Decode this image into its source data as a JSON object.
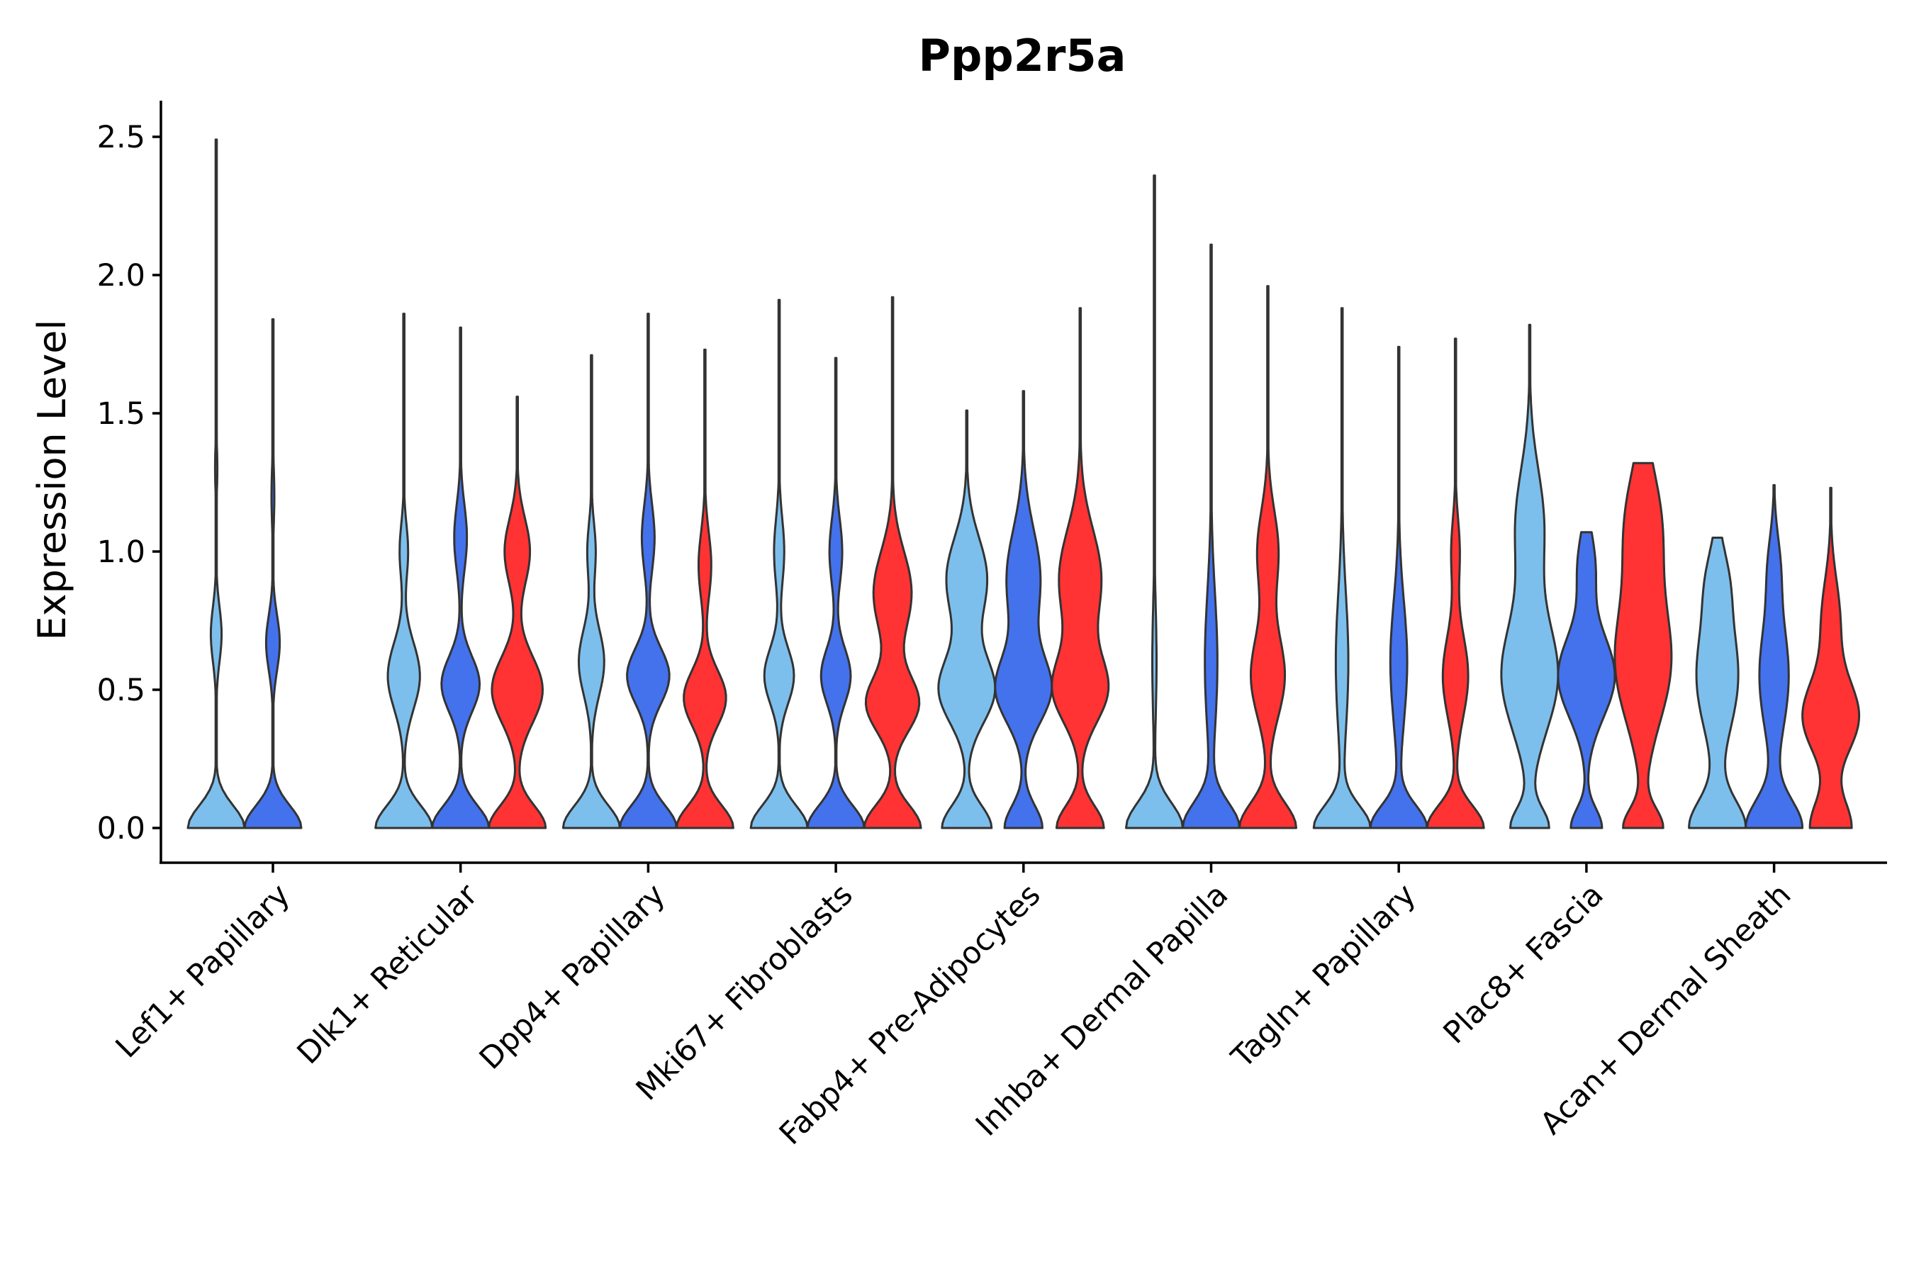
{
  "chart_data": {
    "type": "violin",
    "title": "Ppp2r5a",
    "xlabel": "",
    "ylabel": "Expression Level",
    "ylim": [
      -0.12,
      2.62
    ],
    "yticks": [
      0.0,
      0.5,
      1.0,
      1.5,
      2.0,
      2.5
    ],
    "ytick_labels": [
      "0.0",
      "0.5",
      "1.0",
      "1.5",
      "2.0",
      "2.5"
    ],
    "categories": [
      "Lef1+ Papillary",
      "Dlk1+ Reticular",
      "Dpp4+ Papillary",
      "Mki67+ Fibroblasts",
      "Fabp4+ Pre-Adipocytes",
      "Inhba+ Dermal Papilla",
      "Tagln+ Papillary",
      "Plac8+ Fascia",
      "Acan+ Dermal Sheath"
    ],
    "colors": {
      "group1": "#7DBFEC",
      "group2": "#4472EC",
      "group3": "#FF3333"
    },
    "violins": [
      {
        "category": 0,
        "group": "group1",
        "max": 2.49,
        "modes": [
          [
            0.0,
            1.0,
            0.08
          ],
          [
            0.7,
            0.19,
            0.1
          ],
          [
            1.3,
            0.04,
            0.08
          ]
        ]
      },
      {
        "category": 0,
        "group": "group2",
        "max": 1.84,
        "modes": [
          [
            0.0,
            1.0,
            0.08
          ],
          [
            0.67,
            0.24,
            0.1
          ],
          [
            1.2,
            0.05,
            0.1
          ]
        ]
      },
      {
        "category": 1,
        "group": "group1",
        "max": 1.86,
        "modes": [
          [
            0.0,
            0.67,
            0.08
          ],
          [
            0.55,
            0.38,
            0.12
          ],
          [
            1.0,
            0.1,
            0.1
          ]
        ]
      },
      {
        "category": 1,
        "group": "group2",
        "max": 1.81,
        "modes": [
          [
            0.0,
            0.67,
            0.08
          ],
          [
            0.52,
            0.45,
            0.1
          ],
          [
            1.05,
            0.15,
            0.12
          ]
        ]
      },
      {
        "category": 1,
        "group": "group3",
        "max": 1.56,
        "modes": [
          [
            0.0,
            0.67,
            0.08
          ],
          [
            0.5,
            0.6,
            0.12
          ],
          [
            1.0,
            0.3,
            0.12
          ]
        ]
      },
      {
        "category": 2,
        "group": "group1",
        "max": 1.71,
        "modes": [
          [
            0.0,
            0.67,
            0.08
          ],
          [
            0.6,
            0.3,
            0.12
          ],
          [
            1.0,
            0.1,
            0.1
          ]
        ]
      },
      {
        "category": 2,
        "group": "group2",
        "max": 1.86,
        "modes": [
          [
            0.0,
            0.67,
            0.08
          ],
          [
            0.55,
            0.5,
            0.1
          ],
          [
            1.05,
            0.15,
            0.12
          ]
        ]
      },
      {
        "category": 2,
        "group": "group3",
        "max": 1.73,
        "modes": [
          [
            0.0,
            0.67,
            0.08
          ],
          [
            0.47,
            0.5,
            0.1
          ],
          [
            0.95,
            0.15,
            0.12
          ]
        ]
      },
      {
        "category": 3,
        "group": "group1",
        "max": 1.91,
        "modes": [
          [
            0.0,
            0.67,
            0.08
          ],
          [
            0.55,
            0.35,
            0.1
          ],
          [
            1.0,
            0.12,
            0.12
          ]
        ]
      },
      {
        "category": 3,
        "group": "group2",
        "max": 1.7,
        "modes": [
          [
            0.0,
            0.67,
            0.08
          ],
          [
            0.55,
            0.35,
            0.1
          ],
          [
            1.0,
            0.15,
            0.12
          ]
        ]
      },
      {
        "category": 3,
        "group": "group3",
        "max": 1.92,
        "modes": [
          [
            0.0,
            0.67,
            0.08
          ],
          [
            0.45,
            0.62,
            0.1
          ],
          [
            0.85,
            0.45,
            0.15
          ]
        ]
      },
      {
        "category": 4,
        "group": "group1",
        "max": 1.51,
        "modes": [
          [
            0.0,
            0.67,
            0.08
          ],
          [
            0.5,
            0.75,
            0.12
          ],
          [
            0.9,
            0.55,
            0.15
          ]
        ]
      },
      {
        "category": 4,
        "group": "group2",
        "max": 1.58,
        "modes": [
          [
            0.0,
            0.67,
            0.08
          ],
          [
            0.5,
            0.95,
            0.12
          ],
          [
            0.9,
            0.6,
            0.18
          ]
        ]
      },
      {
        "category": 4,
        "group": "group3",
        "max": 1.88,
        "modes": [
          [
            0.0,
            0.67,
            0.08
          ],
          [
            0.5,
            0.75,
            0.12
          ],
          [
            0.9,
            0.6,
            0.18
          ]
        ]
      },
      {
        "category": 5,
        "group": "group1",
        "max": 2.36,
        "modes": [
          [
            0.0,
            0.67,
            0.09
          ],
          [
            0.6,
            0.05,
            0.2
          ]
        ]
      },
      {
        "category": 5,
        "group": "group2",
        "max": 2.11,
        "modes": [
          [
            0.0,
            0.67,
            0.09
          ],
          [
            0.6,
            0.15,
            0.25
          ]
        ]
      },
      {
        "category": 5,
        "group": "group3",
        "max": 1.96,
        "modes": [
          [
            0.0,
            0.67,
            0.09
          ],
          [
            0.55,
            0.4,
            0.15
          ],
          [
            1.0,
            0.25,
            0.15
          ]
        ]
      },
      {
        "category": 6,
        "group": "group1",
        "max": 1.88,
        "modes": [
          [
            0.0,
            0.67,
            0.08
          ],
          [
            0.6,
            0.15,
            0.25
          ]
        ]
      },
      {
        "category": 6,
        "group": "group2",
        "max": 1.74,
        "modes": [
          [
            0.0,
            0.67,
            0.08
          ],
          [
            0.6,
            0.2,
            0.22
          ]
        ]
      },
      {
        "category": 6,
        "group": "group3",
        "max": 1.77,
        "modes": [
          [
            0.0,
            0.67,
            0.08
          ],
          [
            0.55,
            0.3,
            0.15
          ],
          [
            1.0,
            0.1,
            0.12
          ]
        ]
      },
      {
        "category": 7,
        "group": "group1",
        "max": 1.82,
        "modes": [
          [
            0.0,
            0.67,
            0.07
          ],
          [
            0.55,
            1.0,
            0.2
          ],
          [
            1.1,
            0.5,
            0.2
          ]
        ]
      },
      {
        "category": 7,
        "group": "group2",
        "max": 1.07,
        "modes": [
          [
            0.0,
            0.55,
            0.07
          ],
          [
            0.55,
            1.0,
            0.15
          ],
          [
            0.95,
            0.3,
            0.12
          ]
        ]
      },
      {
        "category": 7,
        "group": "group3",
        "max": 1.32,
        "modes": [
          [
            0.0,
            0.67,
            0.07
          ],
          [
            0.6,
            0.95,
            0.22
          ],
          [
            1.1,
            0.6,
            0.2
          ]
        ]
      },
      {
        "category": 8,
        "group": "group1",
        "max": 1.05,
        "modes": [
          [
            0.0,
            0.67,
            0.1
          ],
          [
            0.55,
            0.5,
            0.2
          ],
          [
            0.9,
            0.2,
            0.12
          ]
        ]
      },
      {
        "category": 8,
        "group": "group2",
        "max": 1.24,
        "modes": [
          [
            0.0,
            0.67,
            0.1
          ],
          [
            0.55,
            0.35,
            0.2
          ],
          [
            0.95,
            0.12,
            0.12
          ]
        ]
      },
      {
        "category": 8,
        "group": "group3",
        "max": 1.23,
        "modes": [
          [
            0.0,
            0.67,
            0.1
          ],
          [
            0.4,
            0.9,
            0.13
          ],
          [
            0.75,
            0.3,
            0.15
          ]
        ]
      }
    ]
  }
}
